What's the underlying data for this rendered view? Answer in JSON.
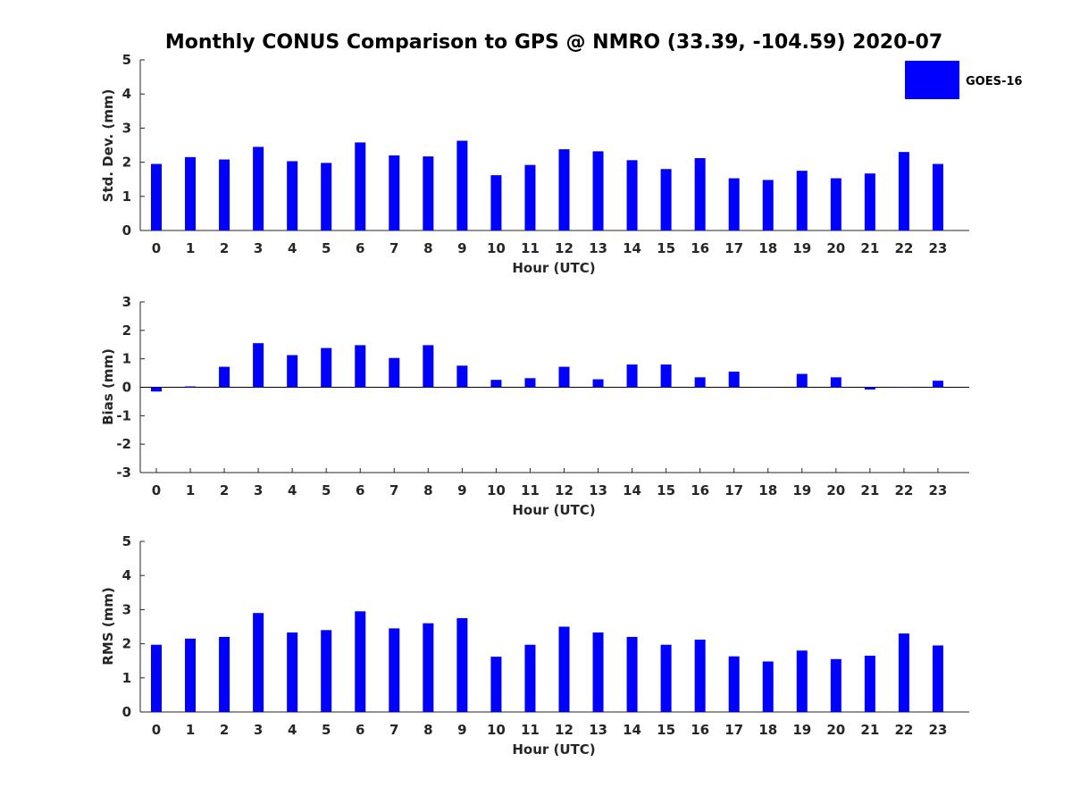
{
  "title": "Monthly CONUS Comparison to GPS @ NMRO (33.39, -104.59) 2020-07",
  "legend": {
    "label": "GOES-16",
    "color": "#0000ff",
    "placement": "top-right"
  },
  "colors": {
    "bar": "#0000ff",
    "axis": "#262626",
    "background": "#ffffff"
  },
  "chart_data": [
    {
      "type": "bar",
      "title": "Monthly CONUS Comparison to GPS @ NMRO (33.39, -104.59) 2020-07",
      "xlabel": "Hour (UTC)",
      "ylabel": "Std. Dev. (mm)",
      "ylim": [
        0,
        5
      ],
      "yticks": [
        "0",
        "1",
        "2",
        "3",
        "4",
        "5"
      ],
      "categories": [
        "0",
        "1",
        "2",
        "3",
        "4",
        "5",
        "6",
        "7",
        "8",
        "9",
        "10",
        "11",
        "12",
        "13",
        "14",
        "15",
        "16",
        "17",
        "18",
        "19",
        "20",
        "21",
        "22",
        "23"
      ],
      "series": [
        {
          "name": "GOES-16",
          "values": [
            1.95,
            2.15,
            2.08,
            2.45,
            2.03,
            1.98,
            2.58,
            2.2,
            2.17,
            2.63,
            1.62,
            1.92,
            2.38,
            2.32,
            2.06,
            1.8,
            2.12,
            1.53,
            1.48,
            1.75,
            1.53,
            1.67,
            2.3,
            1.95
          ]
        }
      ],
      "grid": false
    },
    {
      "type": "bar",
      "xlabel": "Hour (UTC)",
      "ylabel": "Bias (mm)",
      "ylim": [
        -3,
        3
      ],
      "yticks": [
        "-3",
        "-2",
        "-1",
        "0",
        "1",
        "2",
        "3"
      ],
      "categories": [
        "0",
        "1",
        "2",
        "3",
        "4",
        "5",
        "6",
        "7",
        "8",
        "9",
        "10",
        "11",
        "12",
        "13",
        "14",
        "15",
        "16",
        "17",
        "18",
        "19",
        "20",
        "21",
        "22",
        "23"
      ],
      "series": [
        {
          "name": "GOES-16",
          "values": [
            -0.15,
            0.03,
            0.72,
            1.55,
            1.13,
            1.38,
            1.48,
            1.03,
            1.48,
            0.76,
            0.26,
            0.32,
            0.72,
            0.28,
            0.8,
            0.8,
            0.35,
            0.55,
            0.0,
            0.47,
            0.35,
            -0.08,
            0.0,
            0.23
          ]
        }
      ],
      "grid": false
    },
    {
      "type": "bar",
      "xlabel": "Hour (UTC)",
      "ylabel": "RMS (mm)",
      "ylim": [
        0,
        5
      ],
      "yticks": [
        "0",
        "1",
        "2",
        "3",
        "4",
        "5"
      ],
      "categories": [
        "0",
        "1",
        "2",
        "3",
        "4",
        "5",
        "6",
        "7",
        "8",
        "9",
        "10",
        "11",
        "12",
        "13",
        "14",
        "15",
        "16",
        "17",
        "18",
        "19",
        "20",
        "21",
        "22",
        "23"
      ],
      "series": [
        {
          "name": "GOES-16",
          "values": [
            1.97,
            2.15,
            2.2,
            2.9,
            2.33,
            2.4,
            2.95,
            2.45,
            2.6,
            2.75,
            1.62,
            1.97,
            2.5,
            2.33,
            2.2,
            1.97,
            2.12,
            1.63,
            1.48,
            1.8,
            1.55,
            1.65,
            2.3,
            1.95
          ]
        }
      ],
      "grid": false
    }
  ]
}
